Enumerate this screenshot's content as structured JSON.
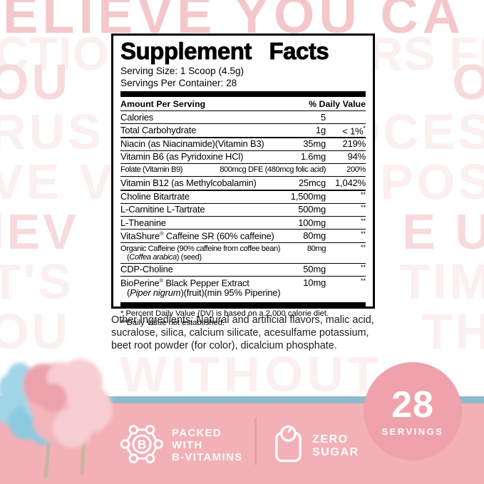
{
  "colors": {
    "banner_pink": "#f3b0b6",
    "stripe_blue": "#8fb9cc",
    "circle_pink": "#efa2ac",
    "divider_pink": "#e79fa9",
    "facts_black": "#000000",
    "text_black": "#1d1d1d",
    "wm_strong": "#f4c8cb",
    "wm_medium": "#f7dadd",
    "wm_faint": "#fbeff0",
    "candy_pink": "#f2b6bb",
    "candy_pink_light": "#f7ced2",
    "candy_pink_deep": "#eda3ac",
    "candy_blue": "#a2d5e7",
    "candy_blue_deep": "#8ccadf",
    "stick_tan": "#c7b6a3",
    "badge_white": "#ffffff"
  },
  "watermark": {
    "top_lines": [
      {
        "text": "ELIEVE YOU CA",
        "tone": "strong"
      },
      {
        "text": "CTION CONQUERS FE",
        "tone": "faint"
      }
    ],
    "edge_lines": [
      {
        "left": "OU",
        "right": "O",
        "tone": "medium"
      },
      {
        "left": "RUS",
        "right": "OCES",
        "tone": "faint"
      },
      {
        "left": "VE V",
        "right": "RPOS",
        "tone": "faint"
      },
      {
        "left": "IEV",
        "right": "E U",
        "tone": "medium"
      },
      {
        "left": "T'S",
        "right": "TIM",
        "tone": "faint"
      },
      {
        "left": "OU",
        "right": "TH",
        "tone": "faint"
      }
    ],
    "banner_line": {
      "text": "WITHOUT",
      "tone": "faint"
    }
  },
  "supplement_facts": {
    "title": "Supplement Facts",
    "serving_size": "Serving Size: 1 Scoop (4.5g)",
    "servings_per_container": "Servings Per Container: 28",
    "header": {
      "amount": "Amount Per Serving",
      "daily_value": "% Daily Value"
    },
    "sections": [
      {
        "rows": [
          {
            "name": "Calories",
            "amount": "5",
            "dv": ""
          },
          {
            "name": "Total Carbohydrate",
            "amount": "1g",
            "dv": "< 1%*"
          }
        ]
      },
      {
        "rows": [
          {
            "name": "Niacin (as Niacinamide)(Vitamin B3)",
            "amount": "35mg",
            "dv": "219%"
          },
          {
            "name": "Vitamin B6 (as Pyridoxine HCl)",
            "amount": "1.6mg",
            "dv": "94%"
          },
          {
            "name": "Folate (Vitamin B9)",
            "amount": "800mcg DFE (480mcg folic acid)",
            "dv": "200%",
            "small": true
          },
          {
            "name": "Vitamin B12 (as Methylcobalamin)",
            "amount": "25mcg",
            "dv": "1,042%"
          }
        ]
      },
      {
        "rows": [
          {
            "name": "Choline Bitartrate",
            "amount": "1,500mg",
            "dv": "**"
          },
          {
            "name": "L-Carnitine L-Tartrate",
            "amount": "500mg",
            "dv": "**"
          },
          {
            "name": "L-Theanine",
            "amount": "100mg",
            "dv": "**"
          },
          {
            "name": "VitaShure® Caffeine SR (60% caffeine)",
            "amount": "80mg",
            "dv": "**"
          },
          {
            "name": "Organic Caffeine (90% caffeine from coffee bean)",
            "amount": "80mg",
            "dv": "**",
            "small": true,
            "line2": [
              {
                "text": "(",
                "i": false
              },
              {
                "text": "Coffea arabica",
                "i": true
              },
              {
                "text": ") (seed)",
                "i": false
              }
            ]
          },
          {
            "name": "CDP-Choline",
            "amount": "50mg",
            "dv": "**"
          },
          {
            "name": "BioPerine® Black Pepper Extract",
            "amount": "10mg",
            "dv": "**",
            "line2": [
              {
                "text": "(",
                "i": false
              },
              {
                "text": "Piper nigrum",
                "i": true
              },
              {
                "text": ")(fruit)(min 95% Piperine)",
                "i": false
              }
            ]
          }
        ]
      }
    ],
    "footnotes": [
      "* Percent Daily Value (DV) is based on a 2,000 calorie diet.",
      "**Daily Value not established."
    ]
  },
  "other_ingredients": "Other Ingredients: Natural and artificial flavors, malic acid, sucralose, silica, calcium silicate, acesulfame potassium, beet root powder (for color), dicalcium phosphate.",
  "footer": {
    "servings_badge": {
      "number": "28",
      "label": "SERVINGS"
    },
    "b_vitamins_badge": {
      "icon": "b-molecule-icon",
      "icon_letter": "B",
      "lines": [
        "PACKED",
        "WITH",
        "B-VITAMINS"
      ]
    },
    "zero_sugar_badge": {
      "icon": "scale-icon",
      "lines": [
        "ZERO",
        "SUGAR"
      ]
    }
  }
}
